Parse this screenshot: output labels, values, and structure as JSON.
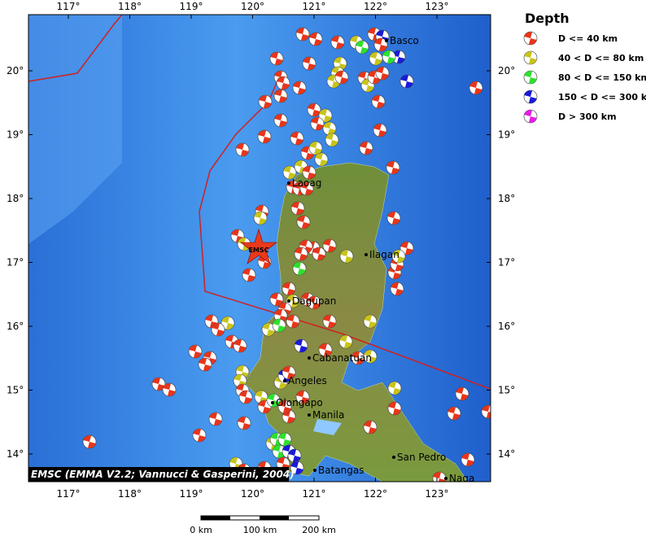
{
  "map": {
    "lon_labels": [
      "117°",
      "118°",
      "119°",
      "120°",
      "121°",
      "122°",
      "123°"
    ],
    "lat_labels": [
      "20°",
      "19°",
      "18°",
      "17°",
      "16°",
      "15°",
      "14°"
    ],
    "legend": {
      "title": "Depth",
      "items": [
        {
          "label": "D <= 40 km",
          "color": "#e8351a"
        },
        {
          "label": "40 < D <= 80 km",
          "color": "#c8c41a"
        },
        {
          "label": "80 < D <= 150 km",
          "color": "#2ee02e"
        },
        {
          "label": "150 < D <= 300 km",
          "color": "#1a1ad8"
        },
        {
          "label": "D > 300 km",
          "color": "#e81ae8"
        }
      ]
    },
    "cities": [
      "Basco",
      "Laoag",
      "Ilagan",
      "Dagupan",
      "Cabanatuan",
      "Angeles",
      "Olongapo",
      "Manila",
      "Batangas",
      "San Pedro",
      "Naga"
    ],
    "marker_label": "EMSC",
    "credit": "EMSC (EMMA V2.2; Vannucci & Gasperini, 2004)",
    "scale_labels": [
      "0 km",
      "100 km",
      "200 km"
    ]
  }
}
